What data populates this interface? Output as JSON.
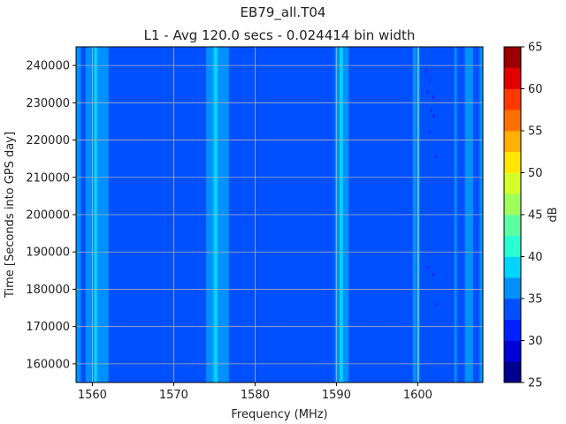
{
  "chart_data": {
    "type": "heatmap",
    "title": "EB79_all.T04",
    "subtitle": "L1 - Avg 120.0 secs - 0.024414 bin width",
    "xlabel": "Frequency (MHz)",
    "ylabel": "Time [Seconds into GPS day]",
    "colorbar_label": "dB",
    "xlim": [
      1558,
      1608
    ],
    "ylim": [
      155000,
      245000
    ],
    "x_ticks": [
      "1560",
      "1570",
      "1580",
      "1590",
      "1600"
    ],
    "y_ticks": [
      "160000",
      "170000",
      "180000",
      "190000",
      "200000",
      "210000",
      "220000",
      "230000",
      "240000"
    ],
    "grid": true,
    "colorbar": {
      "levels": [
        25,
        27.5,
        30,
        32.5,
        35,
        37.5,
        40,
        42.5,
        45,
        47.5,
        50,
        52.5,
        55,
        57.5,
        60,
        62.5,
        65
      ],
      "tick_labels": [
        "25",
        "30",
        "35",
        "40",
        "45",
        "50",
        "55",
        "60",
        "65"
      ],
      "colors": [
        "#00008f",
        "#0000d6",
        "#0020ff",
        "#0050ff",
        "#0090ff",
        "#00d4ff",
        "#2affd4",
        "#5aff9f",
        "#9fff5a",
        "#d4ff2a",
        "#ffe600",
        "#ffb000",
        "#ff7000",
        "#ff3800",
        "#e00000",
        "#9a0000"
      ]
    },
    "background_level_db": 33.5,
    "bands": [
      {
        "from": 1558.0,
        "to": 1558.6,
        "level_db": 36
      },
      {
        "from": 1559.2,
        "to": 1560.2,
        "level_db": 36
      },
      {
        "from": 1560.2,
        "to": 1560.6,
        "level_db": 38
      },
      {
        "from": 1560.6,
        "to": 1562.0,
        "level_db": 36
      },
      {
        "from": 1574.0,
        "to": 1576.8,
        "level_db": 36
      },
      {
        "from": 1574.9,
        "to": 1575.4,
        "level_db": 38
      },
      {
        "from": 1589.8,
        "to": 1591.5,
        "level_db": 36
      },
      {
        "from": 1590.4,
        "to": 1590.8,
        "level_db": 38
      },
      {
        "from": 1599.4,
        "to": 1599.9,
        "level_db": 36
      },
      {
        "from": 1600.0,
        "to": 1600.2,
        "level_db": 38
      },
      {
        "from": 1604.5,
        "to": 1604.8,
        "level_db": 36
      },
      {
        "from": 1605.8,
        "to": 1606.8,
        "level_db": 36
      },
      {
        "from": 1607.6,
        "to": 1608.0,
        "level_db": 36
      }
    ],
    "weak_spots": [
      {
        "x": 1601.0,
        "y": 238500,
        "level_db": 31
      },
      {
        "x": 1601.4,
        "y": 236000,
        "level_db": 31
      },
      {
        "x": 1601.2,
        "y": 233000,
        "level_db": 31
      },
      {
        "x": 1601.9,
        "y": 231500,
        "level_db": 31
      },
      {
        "x": 1601.6,
        "y": 228000,
        "level_db": 31
      },
      {
        "x": 1602.0,
        "y": 226500,
        "level_db": 31
      },
      {
        "x": 1601.5,
        "y": 222000,
        "level_db": 31
      },
      {
        "x": 1602.2,
        "y": 215500,
        "level_db": 31
      },
      {
        "x": 1601.3,
        "y": 186000,
        "level_db": 31
      },
      {
        "x": 1601.9,
        "y": 184000,
        "level_db": 31
      },
      {
        "x": 1602.3,
        "y": 176000,
        "level_db": 31
      }
    ]
  }
}
